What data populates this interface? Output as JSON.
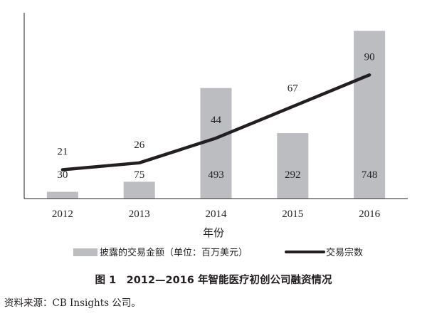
{
  "chart_data": {
    "type": "bar",
    "categories": [
      "2012",
      "2013",
      "2014",
      "2015",
      "2016"
    ],
    "xlabel": "年份",
    "ylabel": "",
    "title": "",
    "series": [
      {
        "name": "披露的交易金额（单位：百万美元）",
        "type": "bar",
        "color": "#bcbdc0",
        "values": [
          30,
          75,
          493,
          292,
          748
        ],
        "ylim": [
          0,
          1000
        ]
      },
      {
        "name": "交易宗数",
        "type": "line",
        "color": "#231f20",
        "values": [
          21,
          26,
          44,
          67,
          90
        ],
        "ylim": [
          0,
          100
        ]
      }
    ],
    "grid": false,
    "legend": "bottom"
  },
  "figure": {
    "caption": "图 1　2012—2016 年智能医疗初创公司融资情况",
    "source": "资料来源：CB Insights 公司。"
  }
}
